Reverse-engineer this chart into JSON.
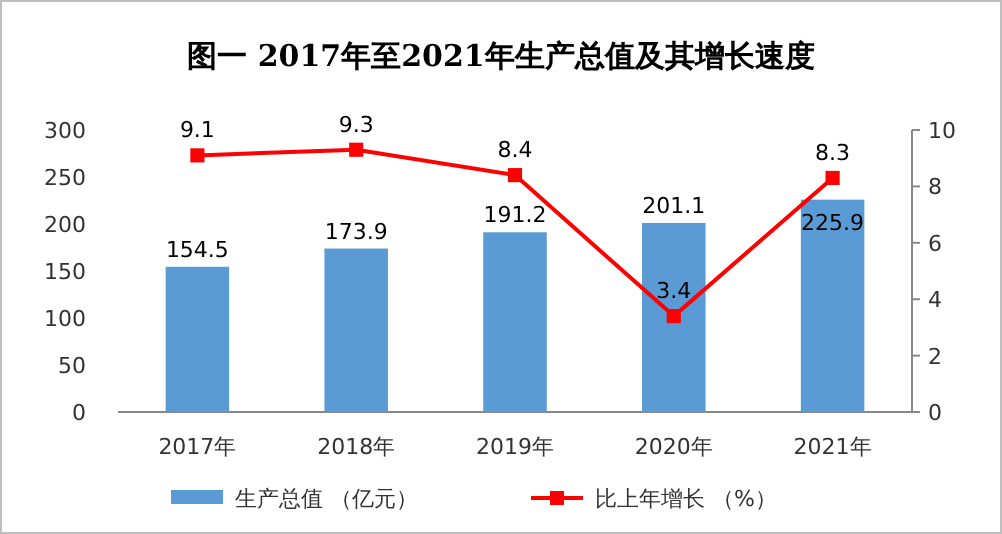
{
  "chart_data": {
    "type": "bar",
    "title": "图一  2017年至2021年生产总值及其增长速度",
    "categories": [
      "2017年",
      "2018年",
      "2019年",
      "2020年",
      "2021年"
    ],
    "series": [
      {
        "name": "生产总值  （亿元）",
        "color": "#5b9bd5",
        "values": [
          154.5,
          173.9,
          191.2,
          201.1,
          225.9
        ]
      },
      {
        "name": "比上年增长  （%）",
        "type": "line",
        "axis": "y2",
        "color": "#ff0000",
        "marker": "square",
        "values": [
          9.1,
          9.3,
          8.4,
          3.4,
          8.3
        ]
      }
    ],
    "ylim": [
      0,
      300
    ],
    "yticks": [
      0,
      50,
      100,
      150,
      200,
      250,
      300
    ],
    "y2lim": [
      0,
      10
    ],
    "y2ticks": [
      0,
      2,
      4,
      6,
      8,
      10
    ],
    "data_labels": true,
    "grid": false,
    "legend": "bottom"
  }
}
